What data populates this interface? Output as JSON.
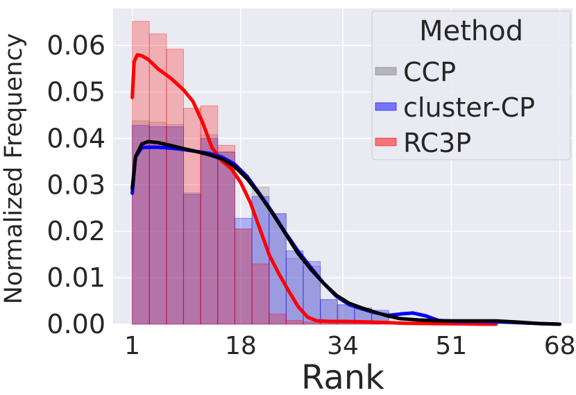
{
  "chart_data": {
    "type": "histogram",
    "xlabel": "Rank",
    "ylabel": "Normalized Frequency",
    "xlim": [
      -2,
      70
    ],
    "ylim": [
      0,
      0.068
    ],
    "x_ticks": [
      1,
      18,
      34,
      51,
      68
    ],
    "x_tick_labels": [
      "1",
      "18",
      "34",
      "51",
      "68"
    ],
    "y_ticks": [
      0.0,
      0.01,
      0.02,
      0.03,
      0.04,
      0.05,
      0.06
    ],
    "y_tick_labels": [
      "0.00",
      "0.01",
      "0.02",
      "0.03",
      "0.04",
      "0.05",
      "0.06"
    ],
    "grid": true,
    "legend": {
      "title": "Method",
      "placement": "top-right"
    },
    "bin_edges": [
      1,
      3.68,
      6.36,
      9.04,
      11.72,
      14.4,
      17.08,
      19.76,
      22.44,
      25.12,
      27.8,
      30.48,
      33.16,
      35.84,
      38.52,
      41.2
    ],
    "series": [
      {
        "name": "CCP",
        "color": "#7f7f7f",
        "hist": [
          0.0438,
          0.0435,
          0.043,
          0.0283,
          0.0408,
          0.0372,
          0.0205,
          0.0295,
          0.0238,
          0.0142,
          0.0125,
          0.0053,
          0.0042,
          0.0033,
          0.0025
        ],
        "curve_x": [
          1,
          1.5,
          2.5,
          3.5,
          5,
          7,
          9,
          11,
          13,
          15,
          17,
          19,
          21,
          23,
          25,
          27,
          29,
          31,
          33,
          35,
          37,
          39,
          41,
          43,
          46,
          50,
          54,
          58,
          62,
          65,
          68
        ],
        "curve_y": [
          0.0292,
          0.036,
          0.0388,
          0.0393,
          0.0391,
          0.0385,
          0.0378,
          0.0372,
          0.0365,
          0.0356,
          0.034,
          0.0313,
          0.0278,
          0.0238,
          0.0195,
          0.0152,
          0.0118,
          0.0088,
          0.0062,
          0.0045,
          0.0035,
          0.0026,
          0.0018,
          0.0012,
          0.0009,
          0.0007,
          0.0007,
          0.0007,
          0.0004,
          0.0001,
          0.0
        ]
      },
      {
        "name": "cluster-CP",
        "color": "#0000ff",
        "hist": [
          0.0428,
          0.0425,
          0.0425,
          0.028,
          0.04,
          0.037,
          0.0228,
          0.0275,
          0.0238,
          0.0158,
          0.0135,
          0.0053,
          0.0042,
          0.0035,
          0.003
        ],
        "curve_x": [
          1,
          1.5,
          2.5,
          3.5,
          5,
          7,
          9,
          11,
          13,
          15,
          17,
          19,
          21,
          23,
          25,
          27,
          29,
          31,
          33,
          35,
          37,
          39,
          41,
          43,
          45,
          47,
          49,
          52,
          56,
          60,
          64,
          68
        ],
        "curve_y": [
          0.0282,
          0.036,
          0.038,
          0.0381,
          0.0381,
          0.0379,
          0.0376,
          0.0372,
          0.0368,
          0.036,
          0.0345,
          0.0318,
          0.028,
          0.024,
          0.0197,
          0.0157,
          0.0122,
          0.0088,
          0.006,
          0.0042,
          0.0033,
          0.0025,
          0.0019,
          0.0022,
          0.0024,
          0.0018,
          0.0008,
          0.0006,
          0.0006,
          0.0004,
          0.0002,
          0.0
        ]
      },
      {
        "name": "RC3P",
        "color": "#ff0000",
        "hist": [
          0.0652,
          0.0625,
          0.0592,
          0.0465,
          0.047,
          0.0385,
          0.0205,
          0.013,
          0.0022,
          0.0008,
          0.0005,
          0.0005,
          0.0003,
          0.0003,
          0.0002
        ],
        "curve_x": [
          1,
          1.3,
          1.8,
          2.5,
          3.5,
          5,
          7,
          9,
          10.5,
          12,
          13.5,
          15,
          16.5,
          18,
          19.5,
          21,
          22.5,
          24,
          25.5,
          27,
          28.5,
          30,
          32,
          34,
          38,
          44,
          50,
          56,
          58
        ],
        "curve_y": [
          0.0488,
          0.0565,
          0.058,
          0.0578,
          0.057,
          0.055,
          0.053,
          0.0505,
          0.048,
          0.0435,
          0.038,
          0.0352,
          0.0335,
          0.0305,
          0.0262,
          0.0205,
          0.0148,
          0.0108,
          0.0072,
          0.0038,
          0.0015,
          0.0007,
          0.0006,
          0.0006,
          0.0005,
          0.0002,
          0.0001,
          0.0,
          0.0
        ]
      }
    ]
  }
}
